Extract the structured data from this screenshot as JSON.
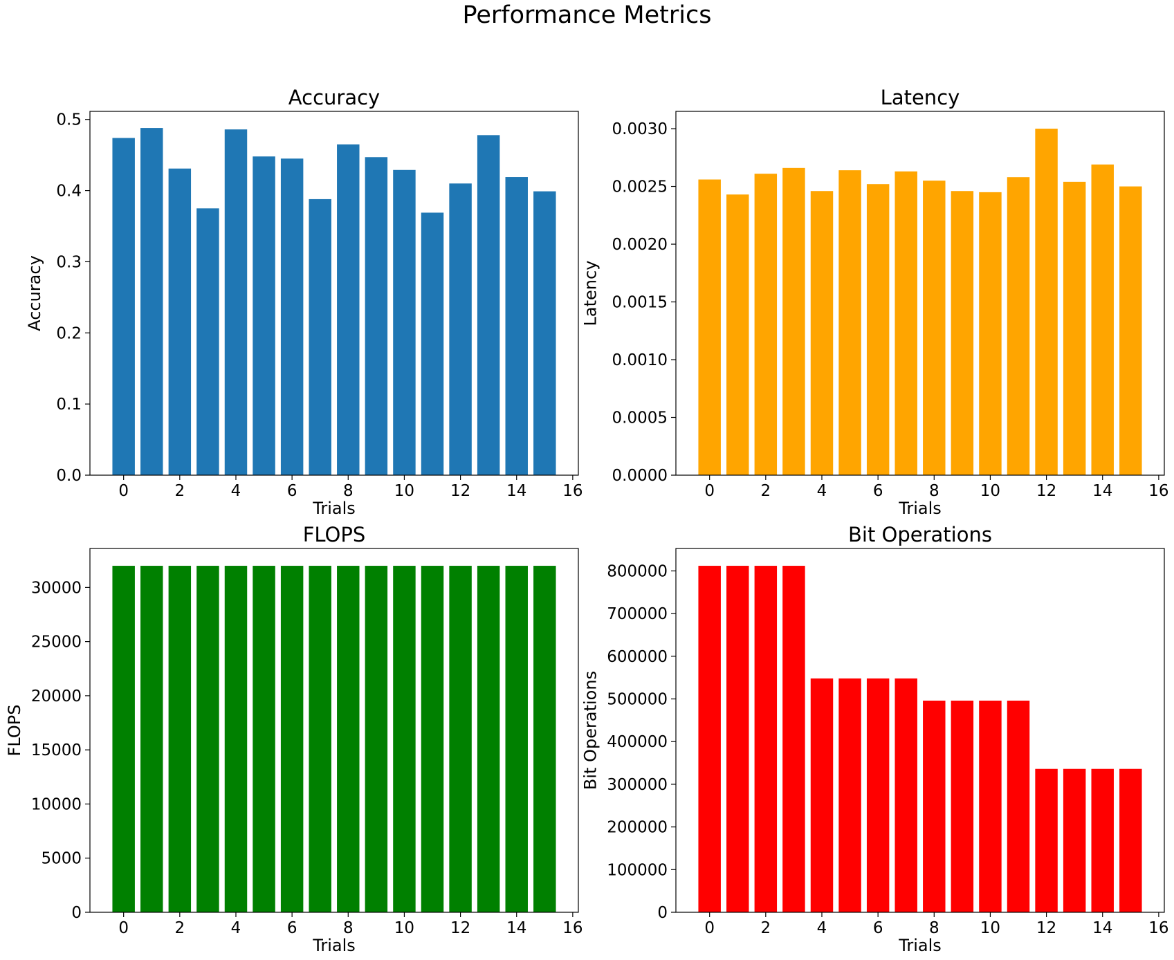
{
  "figure": {
    "title": "Performance Metrics"
  },
  "chart_data": [
    {
      "type": "bar",
      "title": "Accuracy",
      "xlabel": "Trials",
      "ylabel": "Accuracy",
      "color": "#1f77b4",
      "x": [
        0,
        1,
        2,
        3,
        4,
        5,
        6,
        7,
        8,
        9,
        10,
        11,
        12,
        13,
        14,
        15
      ],
      "values": [
        0.474,
        0.488,
        0.431,
        0.375,
        0.486,
        0.448,
        0.445,
        0.388,
        0.465,
        0.447,
        0.429,
        0.369,
        0.41,
        0.478,
        0.419,
        0.399
      ],
      "xlim": [
        -1.2,
        16.2
      ],
      "ylim": [
        0,
        0.5114
      ],
      "xticks": [
        0,
        2,
        4,
        6,
        8,
        10,
        12,
        14,
        16
      ],
      "xtick_labels": [
        "0",
        "2",
        "4",
        "6",
        "8",
        "10",
        "12",
        "14",
        "16"
      ],
      "yticks": [
        0,
        0.1,
        0.2,
        0.3,
        0.4,
        0.5
      ],
      "ytick_labels": [
        "0.0",
        "0.1",
        "0.2",
        "0.3",
        "0.4",
        "0.5"
      ],
      "grid": false
    },
    {
      "type": "bar",
      "title": "Latency",
      "xlabel": "Trials",
      "ylabel": "Latency",
      "color": "#ffa500",
      "x": [
        0,
        1,
        2,
        3,
        4,
        5,
        6,
        7,
        8,
        9,
        10,
        11,
        12,
        13,
        14,
        15
      ],
      "values": [
        0.00256,
        0.00243,
        0.00261,
        0.00266,
        0.00246,
        0.00264,
        0.00252,
        0.00263,
        0.00255,
        0.00246,
        0.00245,
        0.00258,
        0.003,
        0.00254,
        0.00269,
        0.0025
      ],
      "xlim": [
        -1.2,
        16.2
      ],
      "ylim": [
        0,
        0.00315
      ],
      "xticks": [
        0,
        2,
        4,
        6,
        8,
        10,
        12,
        14,
        16
      ],
      "xtick_labels": [
        "0",
        "2",
        "4",
        "6",
        "8",
        "10",
        "12",
        "14",
        "16"
      ],
      "yticks": [
        0,
        0.0005,
        0.001,
        0.0015,
        0.002,
        0.0025,
        0.003
      ],
      "ytick_labels": [
        "0.0000",
        "0.0005",
        "0.0010",
        "0.0015",
        "0.0020",
        "0.0025",
        "0.0030"
      ],
      "grid": false
    },
    {
      "type": "bar",
      "title": "FLOPS",
      "xlabel": "Trials",
      "ylabel": "FLOPS",
      "color": "#008000",
      "x": [
        0,
        1,
        2,
        3,
        4,
        5,
        6,
        7,
        8,
        9,
        10,
        11,
        12,
        13,
        14,
        15
      ],
      "values": [
        32000,
        32000,
        32000,
        32000,
        32000,
        32000,
        32000,
        32000,
        32000,
        32000,
        32000,
        32000,
        32000,
        32000,
        32000,
        32000
      ],
      "xlim": [
        -1.2,
        16.2
      ],
      "ylim": [
        0,
        33600
      ],
      "xticks": [
        0,
        2,
        4,
        6,
        8,
        10,
        12,
        14,
        16
      ],
      "xtick_labels": [
        "0",
        "2",
        "4",
        "6",
        "8",
        "10",
        "12",
        "14",
        "16"
      ],
      "yticks": [
        0,
        5000,
        10000,
        15000,
        20000,
        25000,
        30000
      ],
      "ytick_labels": [
        "0",
        "5000",
        "10000",
        "15000",
        "20000",
        "25000",
        "30000"
      ],
      "grid": false
    },
    {
      "type": "bar",
      "title": "Bit Operations",
      "xlabel": "Trials",
      "ylabel": "Bit Operations",
      "color": "#ff0000",
      "x": [
        0,
        1,
        2,
        3,
        4,
        5,
        6,
        7,
        8,
        9,
        10,
        11,
        12,
        13,
        14,
        15
      ],
      "values": [
        812000,
        812000,
        812000,
        812000,
        548000,
        548000,
        548000,
        548000,
        496000,
        496000,
        496000,
        496000,
        336000,
        336000,
        336000,
        336000
      ],
      "xlim": [
        -1.2,
        16.2
      ],
      "ylim": [
        0,
        852600
      ],
      "xticks": [
        0,
        2,
        4,
        6,
        8,
        10,
        12,
        14,
        16
      ],
      "xtick_labels": [
        "0",
        "2",
        "4",
        "6",
        "8",
        "10",
        "12",
        "14",
        "16"
      ],
      "yticks": [
        0,
        100000,
        200000,
        300000,
        400000,
        500000,
        600000,
        700000,
        800000
      ],
      "ytick_labels": [
        "0",
        "100000",
        "200000",
        "300000",
        "400000",
        "500000",
        "600000",
        "700000",
        "800000"
      ],
      "grid": false
    }
  ]
}
